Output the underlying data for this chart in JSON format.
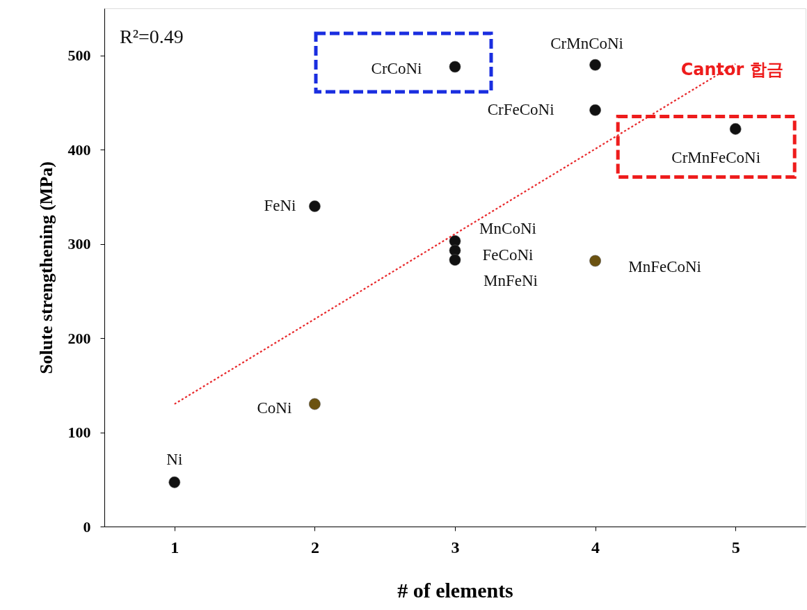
{
  "chart_data": {
    "type": "scatter",
    "xlabel": "# of elements",
    "ylabel": "Solute strengthening (MPa)",
    "xlim": [
      0.5,
      5.5
    ],
    "ylim": [
      0,
      550
    ],
    "xticks": [
      1,
      2,
      3,
      4,
      5
    ],
    "yticks": [
      0,
      100,
      200,
      300,
      400,
      500
    ],
    "grid": false,
    "series": [
      {
        "marker": "circle",
        "x": [
          1,
          2,
          2,
          3,
          3,
          3,
          3,
          4,
          4,
          4,
          5
        ],
        "values": [
          47,
          340,
          130,
          303,
          293,
          283,
          488,
          490,
          442,
          282,
          422
        ],
        "colors": [
          "#111111",
          "#111111",
          "#6b5210",
          "#111111",
          "#111111",
          "#111111",
          "#111111",
          "#111111",
          "#111111",
          "#6b5210",
          "#111111"
        ]
      },
      {
        "type": "line",
        "x": [
          1,
          5
        ],
        "values": [
          130,
          491
        ],
        "color": "#e8282b",
        "line_style": "dotted"
      }
    ],
    "annotations": [
      {
        "text": "Ni",
        "x": 1,
        "y": 47
      },
      {
        "text": "FeNi",
        "x": 2,
        "y": 340
      },
      {
        "text": "CoNi",
        "x": 2,
        "y": 130
      },
      {
        "text": "MnCoNi",
        "x": 3,
        "y": 303
      },
      {
        "text": "FeCoNi",
        "x": 3,
        "y": 293
      },
      {
        "text": "MnFeNi",
        "x": 3,
        "y": 283
      },
      {
        "text": "CrCoNi",
        "x": 3,
        "y": 488
      },
      {
        "text": "CrMnCoNi",
        "x": 4,
        "y": 490
      },
      {
        "text": "CrFeCoNi",
        "x": 4,
        "y": 442
      },
      {
        "text": "MnFeCoNi",
        "x": 4,
        "y": 282
      },
      {
        "text": "CrMnFeCoNi",
        "x": 5,
        "y": 422
      },
      {
        "text": "Cantor 합금",
        "x": 5,
        "y": 422
      },
      "R²=0.49"
    ]
  }
}
